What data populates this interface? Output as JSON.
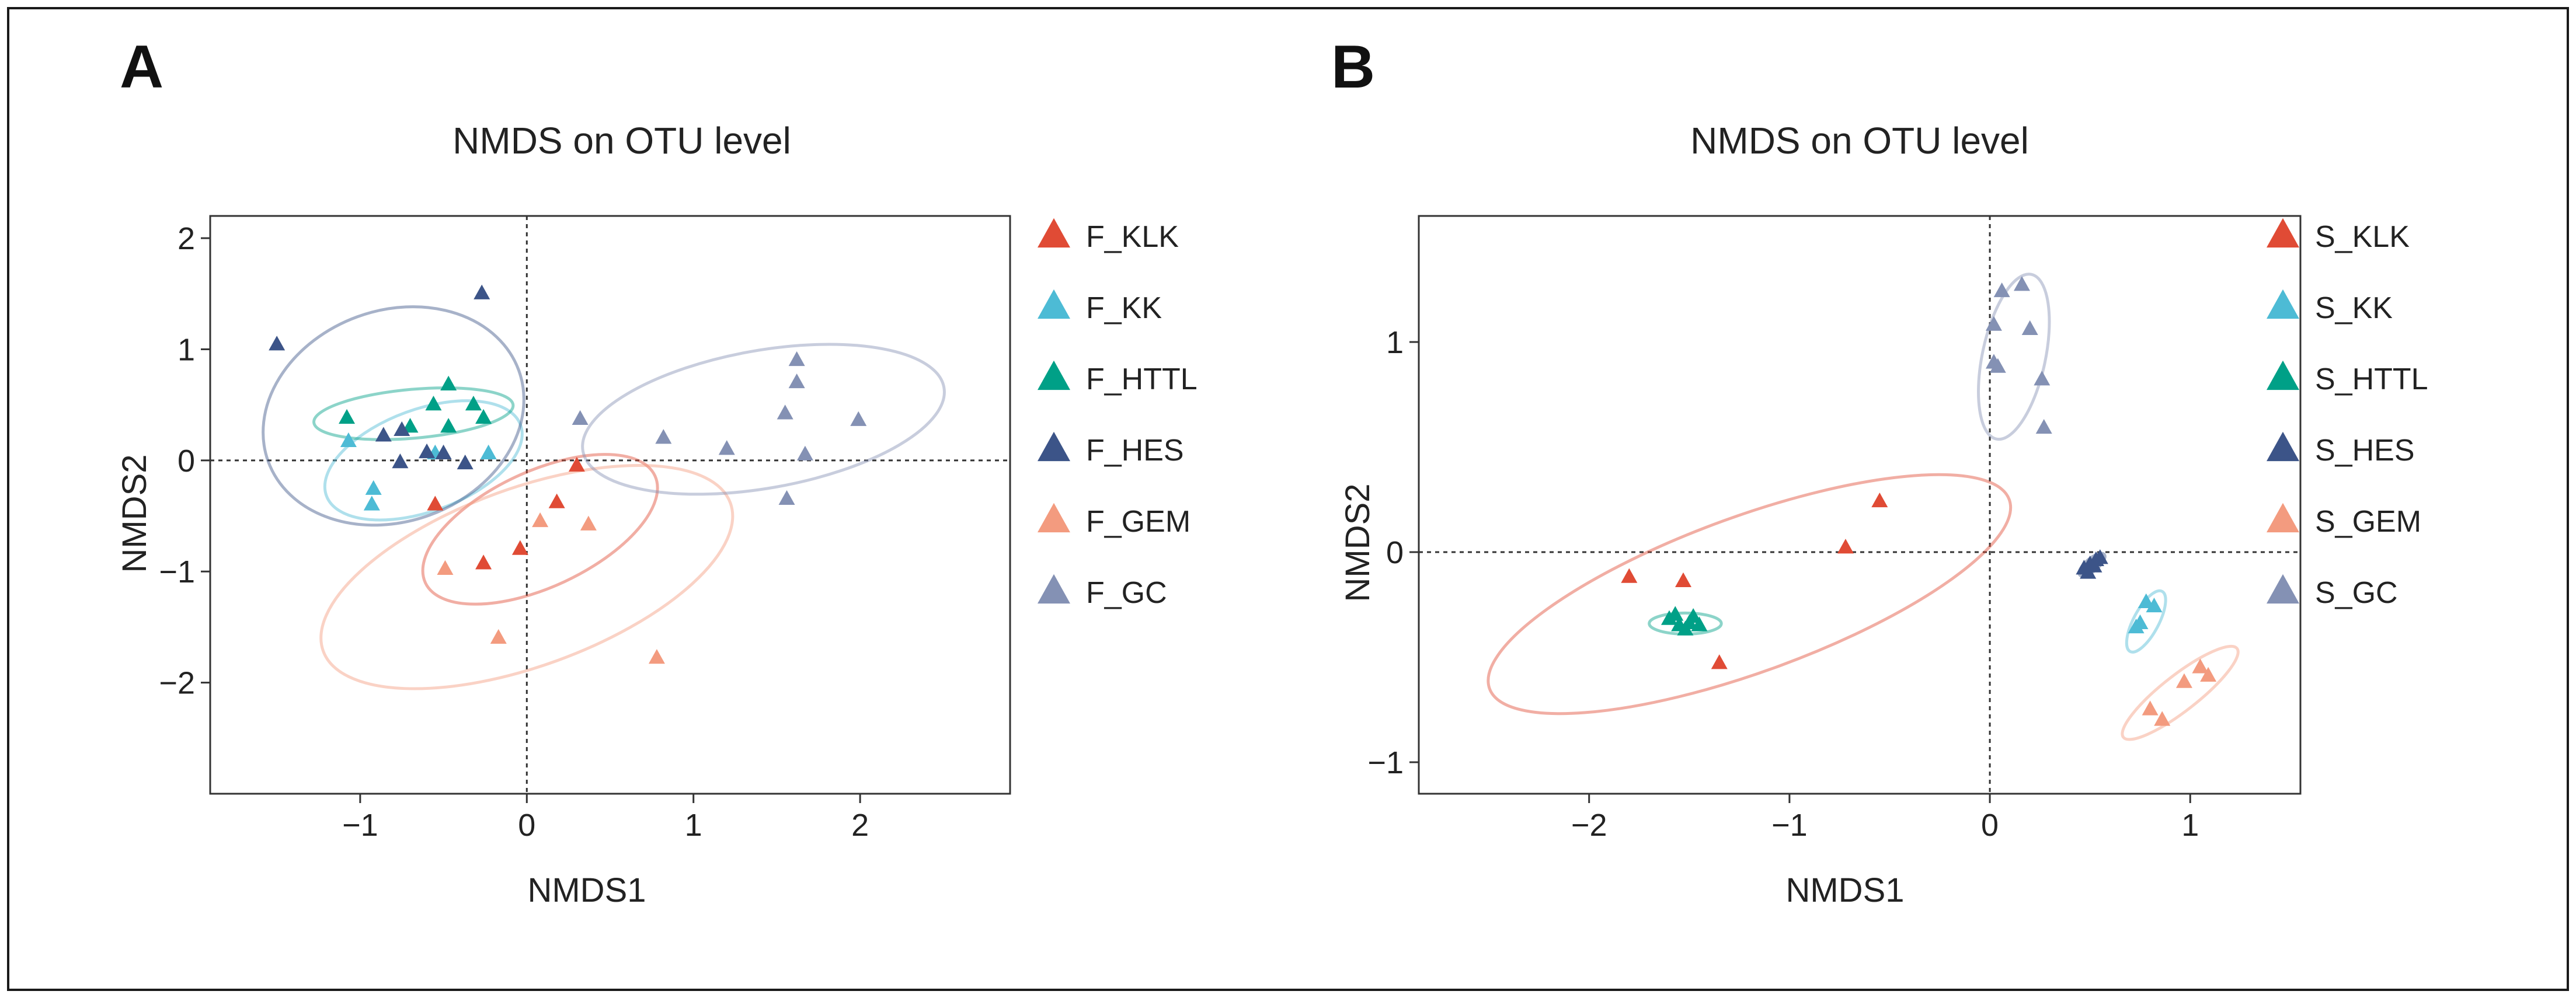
{
  "colors": {
    "KLK": "#e04b35",
    "KK": "#4dbbd5",
    "HTTL": "#00a087",
    "HES": "#3c5488",
    "GEM": "#f39b7f",
    "GC": "#8491b4"
  },
  "chart_data": [
    {
      "type": "scatter",
      "panel": "A",
      "title": "NMDS on OTU level",
      "xlabel": "NMDS1",
      "ylabel": "NMDS2",
      "xlim": [
        -1.9,
        2.9
      ],
      "ylim": [
        -3.0,
        2.2
      ],
      "xticks": [
        -1,
        0,
        1,
        2
      ],
      "yticks": [
        -2,
        -1,
        0,
        1,
        2
      ],
      "xtick_labels": [
        "−1",
        "0",
        "1",
        "2"
      ],
      "ytick_labels": [
        "−2",
        "−1",
        "0",
        "1",
        "2"
      ],
      "grid": false,
      "legend_position": "right",
      "series": [
        {
          "name": "F_KLK",
          "group": "KLK",
          "points": [
            [
              -0.55,
              -0.4
            ],
            [
              -0.26,
              -0.93
            ],
            [
              -0.04,
              -0.8
            ],
            [
              0.18,
              -0.38
            ],
            [
              0.3,
              -0.05
            ]
          ],
          "ellipse": {
            "cx": 0.08,
            "cy": -0.62,
            "rx": 0.76,
            "ry": 0.52,
            "angle": 25
          }
        },
        {
          "name": "F_KK",
          "group": "KK",
          "points": [
            [
              -1.07,
              0.17
            ],
            [
              -0.92,
              -0.26
            ],
            [
              -0.93,
              -0.4
            ],
            [
              -0.23,
              0.06
            ],
            [
              -0.55,
              0.06
            ]
          ],
          "ellipse": {
            "cx": -0.62,
            "cy": 0.0,
            "rx": 0.62,
            "ry": 0.46,
            "angle": 20
          }
        },
        {
          "name": "F_HTTL",
          "group": "HTTL",
          "points": [
            [
              -1.08,
              0.38
            ],
            [
              -0.56,
              0.5
            ],
            [
              -0.47,
              0.68
            ],
            [
              -0.47,
              0.3
            ],
            [
              -0.32,
              0.5
            ],
            [
              -0.26,
              0.38
            ],
            [
              -0.7,
              0.3
            ]
          ],
          "ellipse": {
            "cx": -0.68,
            "cy": 0.42,
            "rx": 0.6,
            "ry": 0.22,
            "angle": 5
          }
        },
        {
          "name": "F_HES",
          "group": "HES",
          "points": [
            [
              -1.5,
              1.04
            ],
            [
              -0.27,
              1.5
            ],
            [
              -0.86,
              0.22
            ],
            [
              -0.75,
              0.27
            ],
            [
              -0.6,
              0.07
            ],
            [
              -0.5,
              0.06
            ],
            [
              -0.76,
              -0.02
            ],
            [
              -0.37,
              -0.03
            ]
          ],
          "ellipse": {
            "cx": -0.8,
            "cy": 0.4,
            "rx": 0.8,
            "ry": 0.95,
            "angle": 20
          }
        },
        {
          "name": "F_GEM",
          "group": "GEM",
          "points": [
            [
              -0.49,
              -0.98
            ],
            [
              0.08,
              -0.55
            ],
            [
              0.37,
              -0.58
            ],
            [
              -0.17,
              -1.6
            ],
            [
              0.78,
              -1.78
            ]
          ],
          "ellipse": {
            "cx": 0.0,
            "cy": -1.05,
            "rx": 1.3,
            "ry": 0.8,
            "angle": 20
          }
        },
        {
          "name": "F_GC",
          "group": "GC",
          "points": [
            [
              0.32,
              0.37
            ],
            [
              0.82,
              0.2
            ],
            [
              1.2,
              0.1
            ],
            [
              1.55,
              0.42
            ],
            [
              1.62,
              0.9
            ],
            [
              1.62,
              0.7
            ],
            [
              1.67,
              0.05
            ],
            [
              1.56,
              -0.35
            ],
            [
              1.99,
              0.36
            ]
          ],
          "ellipse": {
            "cx": 1.42,
            "cy": 0.37,
            "rx": 1.1,
            "ry": 0.62,
            "angle": 10
          }
        }
      ]
    },
    {
      "type": "scatter",
      "panel": "B",
      "title": "NMDS on OTU level",
      "xlabel": "NMDS1",
      "ylabel": "NMDS2",
      "xlim": [
        -2.85,
        1.55
      ],
      "ylim": [
        -1.15,
        1.6
      ],
      "xticks": [
        -2,
        -1,
        0,
        1
      ],
      "yticks": [
        -1,
        0,
        1
      ],
      "xtick_labels": [
        "−2",
        "−1",
        "0",
        "1"
      ],
      "ytick_labels": [
        "−1",
        "0",
        "1"
      ],
      "grid": false,
      "legend_position": "right",
      "series": [
        {
          "name": "S_KLK",
          "group": "KLK",
          "points": [
            [
              -1.8,
              -0.12
            ],
            [
              -1.53,
              -0.14
            ],
            [
              -1.35,
              -0.53
            ],
            [
              -0.72,
              0.02
            ],
            [
              -0.55,
              0.24
            ]
          ],
          "ellipse": {
            "cx": -1.2,
            "cy": -0.2,
            "rx": 1.38,
            "ry": 0.37,
            "angle": 20
          }
        },
        {
          "name": "S_KK",
          "group": "KK",
          "points": [
            [
              0.78,
              -0.24
            ],
            [
              0.82,
              -0.26
            ],
            [
              0.75,
              -0.34
            ],
            [
              0.73,
              -0.36
            ]
          ],
          "ellipse": {
            "cx": 0.78,
            "cy": -0.33,
            "rx": 0.17,
            "ry": 0.06,
            "angle": 62
          }
        },
        {
          "name": "S_HTTL",
          "group": "HTTL",
          "points": [
            [
              -1.6,
              -0.32
            ],
            [
              -1.55,
              -0.35
            ],
            [
              -1.5,
              -0.34
            ],
            [
              -1.48,
              -0.31
            ],
            [
              -1.52,
              -0.37
            ],
            [
              -1.45,
              -0.35
            ],
            [
              -1.57,
              -0.3
            ]
          ],
          "ellipse": {
            "cx": -1.52,
            "cy": -0.34,
            "rx": 0.18,
            "ry": 0.05,
            "angle": 0
          }
        },
        {
          "name": "S_HES",
          "group": "HES",
          "points": [
            [
              0.47,
              -0.08
            ],
            [
              0.5,
              -0.06
            ],
            [
              0.53,
              -0.04
            ],
            [
              0.49,
              -0.1
            ],
            [
              0.52,
              -0.07
            ],
            [
              0.55,
              -0.03
            ]
          ],
          "ellipse": {
            "cx": 0.51,
            "cy": -0.06,
            "rx": 0.08,
            "ry": 0.03,
            "angle": 40
          }
        },
        {
          "name": "S_GEM",
          "group": "GEM",
          "points": [
            [
              0.8,
              -0.75
            ],
            [
              0.86,
              -0.8
            ],
            [
              0.97,
              -0.62
            ],
            [
              1.05,
              -0.55
            ],
            [
              1.09,
              -0.59
            ]
          ],
          "ellipse": {
            "cx": 0.95,
            "cy": -0.67,
            "rx": 0.36,
            "ry": 0.085,
            "angle": 38
          }
        },
        {
          "name": "S_GC",
          "group": "GC",
          "points": [
            [
              0.02,
              1.08
            ],
            [
              0.06,
              1.24
            ],
            [
              0.16,
              1.27
            ],
            [
              0.2,
              1.06
            ],
            [
              0.02,
              0.9
            ],
            [
              0.04,
              0.88
            ],
            [
              0.26,
              0.82
            ],
            [
              0.27,
              0.59
            ]
          ],
          "ellipse": {
            "cx": 0.12,
            "cy": 0.93,
            "rx": 0.42,
            "ry": 0.15,
            "angle": 78
          }
        }
      ]
    }
  ]
}
